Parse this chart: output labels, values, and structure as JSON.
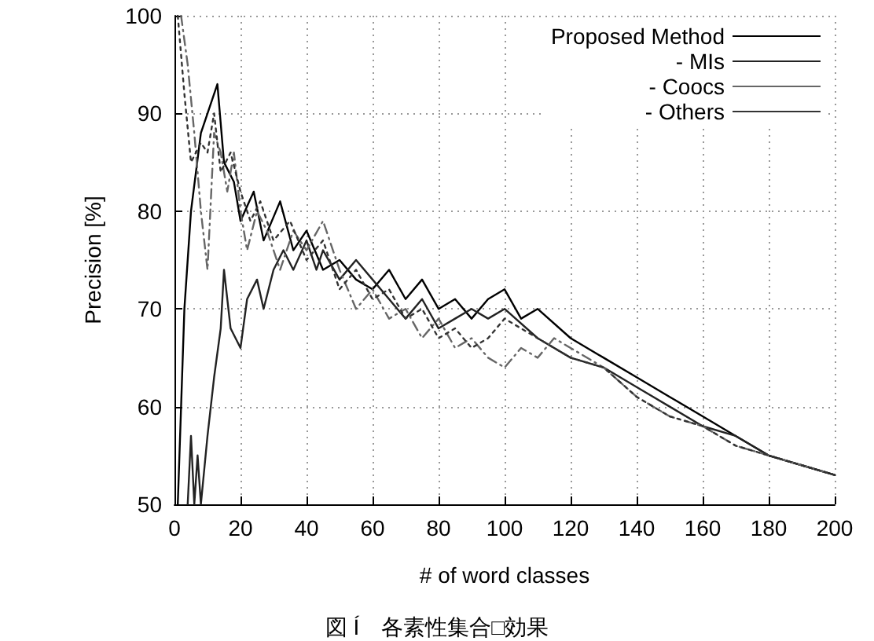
{
  "chart_data": {
    "type": "line",
    "xlabel": "# of word classes",
    "ylabel": "Precision [%]",
    "annotations": [
      "図 Í　各素性集合□効果"
    ],
    "xlim": [
      0,
      200
    ],
    "xticks": [
      0,
      20,
      40,
      60,
      80,
      100,
      120,
      140,
      160,
      180,
      200
    ],
    "ylim": [
      50,
      100
    ],
    "yticks": [
      50,
      60,
      70,
      80,
      90,
      100
    ],
    "grid": true,
    "legend": "top right",
    "marker": "none",
    "series": [
      {
        "name": "Proposed Method",
        "color": "#000000",
        "line_style": "solid",
        "x": [
          1,
          3,
          5,
          8,
          13,
          15,
          18,
          20,
          24,
          27,
          32,
          36,
          40,
          45,
          50,
          55,
          60,
          65,
          70,
          75,
          80,
          85,
          90,
          95,
          100,
          105,
          110,
          120,
          130,
          140,
          150,
          160,
          170,
          180,
          190,
          200
        ],
        "values": [
          50,
          70,
          80,
          88,
          93,
          85,
          83,
          79,
          82,
          77,
          81,
          76,
          78,
          74,
          75,
          73,
          72,
          74,
          71,
          73,
          70,
          71,
          69,
          71,
          72,
          69,
          70,
          67,
          65,
          63,
          61,
          59,
          57,
          55,
          54,
          53
        ]
      },
      {
        "name": "- MIs",
        "color": "#222222",
        "line_style": "solid",
        "x": [
          4,
          5,
          6,
          7,
          8,
          10,
          12,
          14,
          15,
          17,
          20,
          22,
          25,
          27,
          30,
          33,
          36,
          40,
          43,
          45,
          50,
          55,
          60,
          65,
          70,
          75,
          80,
          85,
          90,
          95,
          100,
          110,
          120,
          130,
          140,
          150,
          160,
          170,
          180,
          190,
          200
        ],
        "values": [
          50,
          57,
          50,
          55,
          50,
          57,
          63,
          68,
          74,
          68,
          66,
          71,
          73,
          70,
          74,
          76,
          74,
          77,
          74,
          76,
          73,
          75,
          73,
          71,
          69,
          71,
          68,
          69,
          70,
          69,
          70,
          67,
          65,
          64,
          62,
          60,
          58,
          57,
          55,
          54,
          53
        ]
      },
      {
        "name": "- Coocs",
        "color": "#666666",
        "line_style": "dashed",
        "x": [
          2,
          4,
          6,
          8,
          10,
          12,
          14,
          16,
          18,
          20,
          22,
          25,
          28,
          32,
          36,
          40,
          45,
          50,
          55,
          60,
          65,
          70,
          75,
          80,
          85,
          90,
          95,
          100,
          105,
          110,
          115,
          120,
          130,
          140,
          150,
          160,
          170,
          180,
          190,
          200
        ],
        "values": [
          100,
          95,
          88,
          80,
          74,
          88,
          86,
          82,
          86,
          80,
          76,
          80,
          78,
          74,
          78,
          76,
          79,
          74,
          70,
          72,
          69,
          70,
          67,
          69,
          66,
          67,
          65,
          64,
          66,
          65,
          67,
          66,
          64,
          61,
          59,
          58,
          56,
          55,
          54,
          53
        ]
      },
      {
        "name": "- Others",
        "color": "#333333",
        "line_style": "dotted",
        "x": [
          1,
          3,
          5,
          8,
          10,
          12,
          14,
          17,
          20,
          23,
          26,
          30,
          35,
          40,
          45,
          50,
          55,
          60,
          65,
          70,
          75,
          80,
          85,
          90,
          95,
          100,
          110,
          120,
          130,
          140,
          150,
          160,
          170,
          180,
          190,
          200
        ],
        "values": [
          100,
          92,
          85,
          87,
          86,
          90,
          84,
          86,
          82,
          79,
          81,
          77,
          79,
          75,
          77,
          72,
          74,
          71,
          72,
          69,
          70,
          67,
          68,
          66,
          67,
          69,
          67,
          65,
          64,
          61,
          59,
          58,
          56,
          55,
          54,
          53
        ]
      }
    ]
  }
}
